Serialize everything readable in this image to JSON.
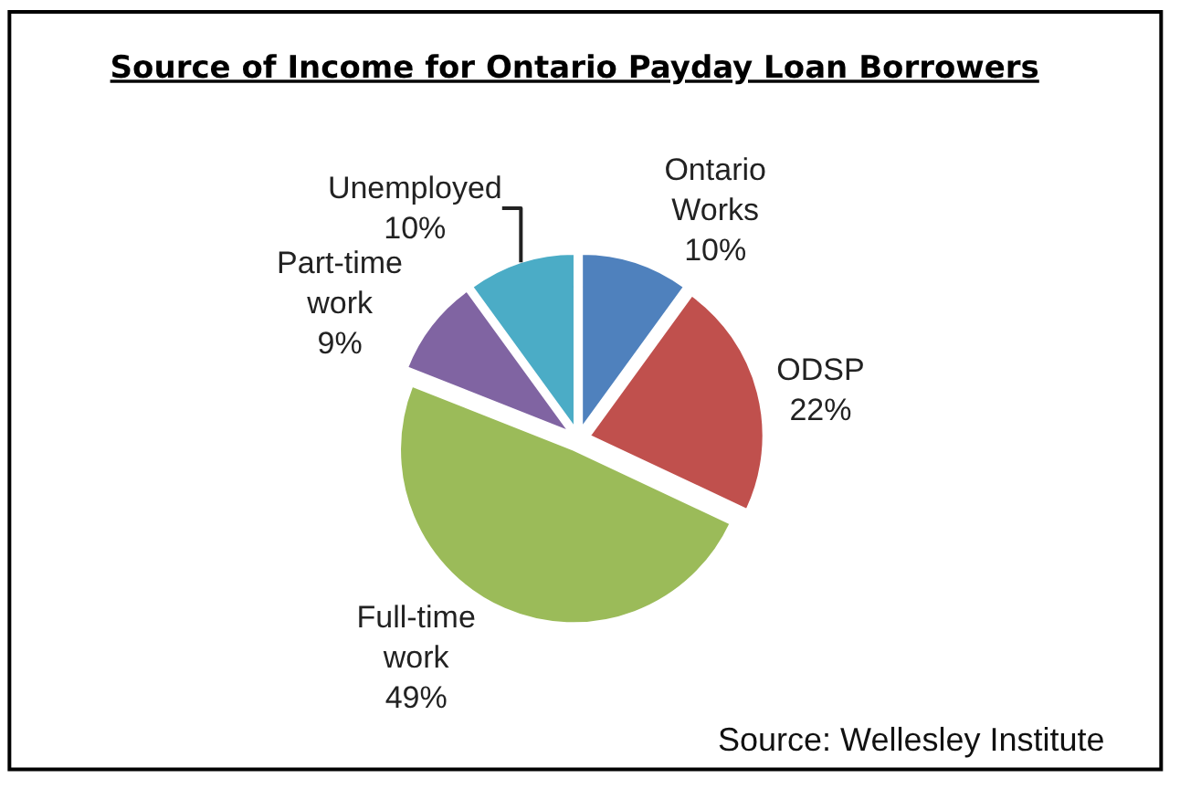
{
  "chart_data": {
    "type": "pie",
    "title": "Source of Income for Ontario Payday Loan Borrowers",
    "categories": [
      "Ontario Works",
      "ODSP",
      "Full-time work",
      "Part-time work",
      "Unemployed"
    ],
    "values": [
      10,
      22,
      49,
      9,
      10
    ],
    "colors": [
      "#4f81bd",
      "#c0504d",
      "#9bbb59",
      "#8064a2",
      "#4bacc6"
    ],
    "value_labels": [
      "10%",
      "22%",
      "49%",
      "9%",
      "10%"
    ],
    "annotations": [
      "Source: Wellesley Institute"
    ]
  }
}
